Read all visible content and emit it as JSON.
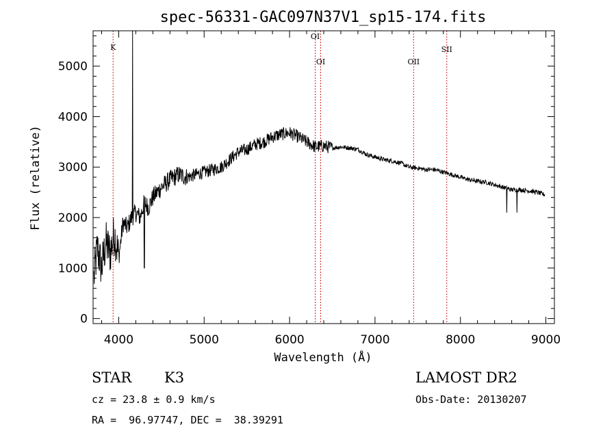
{
  "chart_data": {
    "type": "line",
    "title": "spec-56331-GAC097N37V1_sp15-174.fits",
    "xlabel": "Wavelength (Å)",
    "ylabel": "Flux (relative)",
    "xlim": [
      3700,
      9100
    ],
    "ylim": [
      -100,
      5700
    ],
    "xticks": [
      4000,
      5000,
      6000,
      7000,
      8000,
      9000
    ],
    "yticks": [
      0,
      1000,
      2000,
      3000,
      4000,
      5000
    ],
    "grid": false,
    "line_color": "#000000",
    "marker_color": "#cc2222",
    "spectral_lines": [
      {
        "name": "K",
        "wavelength": 3934
      },
      {
        "name": "OI",
        "wavelength": 6300
      },
      {
        "name": "OI",
        "wavelength": 6364
      },
      {
        "name": "OII",
        "wavelength": 7452
      },
      {
        "name": "SII",
        "wavelength": 7840
      }
    ],
    "series": [
      {
        "x": [
          3710,
          3750,
          3800,
          3850,
          3900,
          3950,
          4000,
          4050,
          4100,
          4150,
          4200,
          4250,
          4300,
          4350,
          4400,
          4450,
          4500,
          4600,
          4700,
          4800,
          4900,
          5000,
          5100,
          5200,
          5300,
          5400,
          5500,
          5600,
          5700,
          5800,
          5900,
          6000,
          6100,
          6200,
          6300,
          6400,
          6500,
          6600,
          6700,
          6800,
          6900,
          7000,
          7100,
          7200,
          7300,
          7400,
          7500,
          7600,
          7700,
          7800,
          7900,
          8000,
          8100,
          8200,
          8300,
          8400,
          8500,
          8600,
          8700,
          8800,
          8900,
          8990
        ],
        "y": [
          800,
          1400,
          1000,
          1500,
          1300,
          1700,
          1200,
          1900,
          1800,
          2000,
          2100,
          2000,
          2300,
          2200,
          2400,
          2500,
          2600,
          2750,
          2850,
          2800,
          2850,
          2900,
          2950,
          3000,
          3150,
          3300,
          3350,
          3450,
          3500,
          3600,
          3650,
          3680,
          3600,
          3500,
          3400,
          3420,
          3380,
          3400,
          3380,
          3350,
          3250,
          3200,
          3150,
          3120,
          3080,
          3000,
          2980,
          2950,
          2950,
          2900,
          2850,
          2800,
          2750,
          2720,
          2700,
          2650,
          2600,
          2550,
          2550,
          2530,
          2500,
          2450
        ]
      }
    ]
  },
  "info": {
    "object_type": "STAR",
    "subclass": "K3",
    "survey": "LAMOST DR2",
    "redshift": "cz = 23.8 ± 0.9 km/s",
    "obs_date": "Obs-Date: 20130207",
    "coords": "RA =  96.97747, DEC =  38.39291"
  }
}
